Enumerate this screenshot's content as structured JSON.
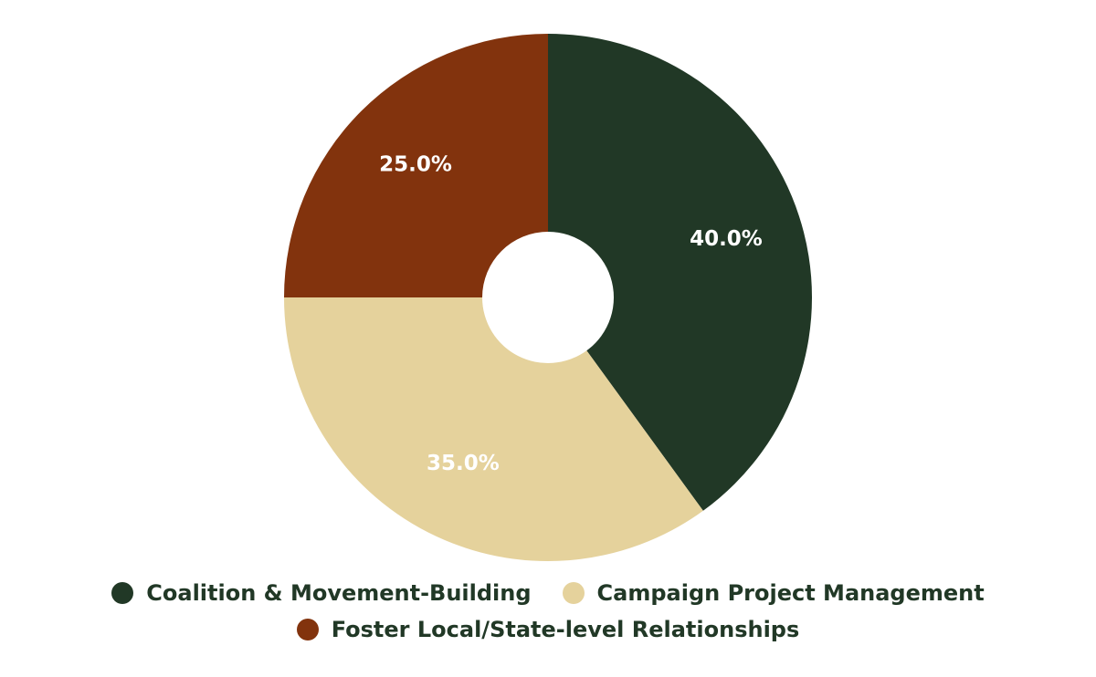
{
  "chart_data": {
    "type": "donut",
    "categories": [
      "Coalition & Movement-Building",
      "Campaign Project Management",
      "Foster Local/State-level Relationships"
    ],
    "values": [
      40,
      35,
      25
    ],
    "value_labels": [
      "40.0%",
      "35.0%",
      "25.0%"
    ],
    "colors": [
      "#213826",
      "#e5d29c",
      "#82330d"
    ]
  }
}
